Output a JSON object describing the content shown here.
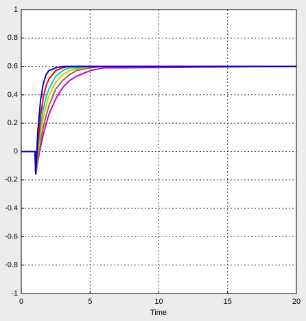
{
  "chart_data": {
    "type": "line",
    "x_label": "Time",
    "x": [
      0,
      1,
      1.05,
      1.2,
      1.4,
      1.6,
      1.8,
      2,
      2.5,
      3,
      3.5,
      4,
      5,
      6,
      7,
      20
    ],
    "series": [
      {
        "color": "#cc00cc",
        "values": [
          0,
          0,
          -0.16,
          -0.07,
          0.03,
          0.12,
          0.19,
          0.26,
          0.37,
          0.45,
          0.5,
          0.53,
          0.57,
          0.59,
          0.59,
          0.6
        ]
      },
      {
        "color": "#996633",
        "values": [
          0,
          0,
          -0.16,
          -0.05,
          0.07,
          0.17,
          0.25,
          0.32,
          0.44,
          0.5,
          0.54,
          0.57,
          0.59,
          0.6,
          0.6,
          0.6
        ]
      },
      {
        "color": "#cccc00",
        "values": [
          0,
          0,
          -0.16,
          -0.02,
          0.12,
          0.24,
          0.32,
          0.39,
          0.49,
          0.54,
          0.57,
          0.58,
          0.6,
          0.6,
          0.6,
          0.6
        ]
      },
      {
        "color": "#00cccc",
        "values": [
          0,
          0,
          -0.16,
          0.01,
          0.18,
          0.3,
          0.38,
          0.44,
          0.53,
          0.57,
          0.59,
          0.59,
          0.6,
          0.6,
          0.6,
          0.6
        ]
      },
      {
        "color": "#ee0000",
        "values": [
          0,
          0,
          -0.16,
          0.05,
          0.25,
          0.38,
          0.46,
          0.51,
          0.57,
          0.59,
          0.6,
          0.6,
          0.6,
          0.6,
          0.6,
          0.6
        ]
      },
      {
        "color": "#0000cc",
        "values": [
          0,
          0,
          -0.16,
          0.14,
          0.36,
          0.48,
          0.54,
          0.57,
          0.59,
          0.6,
          0.6,
          0.6,
          0.6,
          0.6,
          0.6,
          0.6
        ]
      }
    ],
    "xlim": [
      0,
      20
    ],
    "xticks": [
      0,
      5,
      10,
      15,
      20
    ],
    "ylim": [
      -1,
      1
    ],
    "yticks": [
      -1,
      -0.8,
      -0.6,
      -0.4,
      -0.2,
      0,
      0.2,
      0.4,
      0.6,
      0.8,
      1
    ],
    "grid": true
  }
}
